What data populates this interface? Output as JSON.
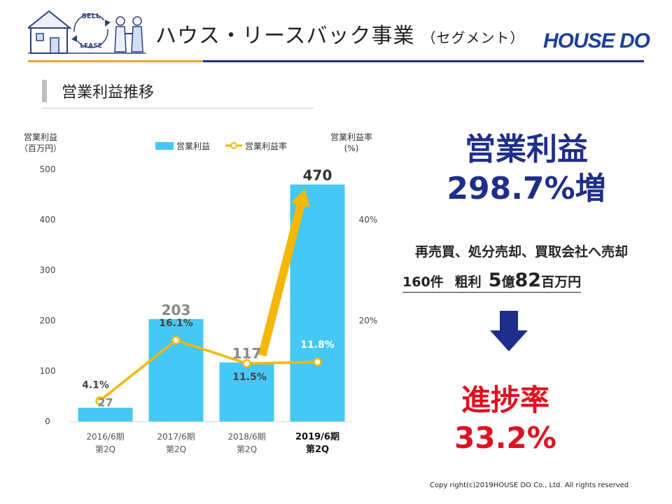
{
  "header": {
    "title": "ハウス・リースバック事業",
    "subtitle": "（セグメント）",
    "logo_text": "HOUSE DO",
    "illustration": {
      "badge_top": "SELL",
      "badge_bottom": "LEASE",
      "icon": "house-handshake-icon"
    }
  },
  "section": {
    "title": "営業利益推移"
  },
  "chart_data": {
    "type": "bar",
    "categories": [
      "2016/6期 第2Q",
      "2017/6期 第2Q",
      "2018/6期 第2Q",
      "2019/6期 第2Q"
    ],
    "category_lines": [
      [
        "2016/6期",
        "第2Q"
      ],
      [
        "2017/6期",
        "第2Q"
      ],
      [
        "2018/6期",
        "第2Q"
      ],
      [
        "2019/6期",
        "第2Q"
      ]
    ],
    "highlighted_category": 3,
    "series": [
      {
        "name": "営業利益",
        "type": "bar",
        "values": [
          27,
          203,
          117,
          470
        ],
        "labels": [
          "27",
          "203",
          "117",
          "470"
        ],
        "axis": "left",
        "color": "#45c8f5"
      },
      {
        "name": "営業利益率",
        "type": "line",
        "values": [
          4.1,
          16.1,
          11.5,
          11.8
        ],
        "labels": [
          "4.1%",
          "16.1%",
          "11.5%",
          "11.8%"
        ],
        "axis": "right",
        "color": "#f5b800"
      }
    ],
    "ylabel": [
      "営業利益",
      "（百万円）"
    ],
    "y2label": [
      "営業利益率",
      "(%)"
    ],
    "ylim": [
      0,
      500
    ],
    "yticks": [
      "0",
      "100",
      "200",
      "300",
      "400",
      "500"
    ],
    "y2lim": [
      0,
      50
    ],
    "y2ticks": [
      "20%",
      "40%"
    ],
    "legend_position": "top",
    "annotation_arrow": {
      "from_category": 2,
      "to_category": 3,
      "color": "#f5b800"
    }
  },
  "summary": {
    "headline_line1": "営業利益",
    "headline_line2": "298.7%増",
    "detail_line1": "再売買、処分売却、買取会社へ売却",
    "detail_count": "160件",
    "detail_label": "粗利",
    "detail_value_1": "5",
    "detail_unit_1": "億",
    "detail_value_2": "82",
    "detail_unit_2": "百万円",
    "progress_label": "進捗率",
    "progress_value": "33.2%",
    "colors": {
      "headline": "#1f2e8a",
      "progress": "#e01020",
      "arrow": "#1f2e8a"
    }
  },
  "footer": {
    "copyright": "Copy right(c)2019HOUSE DO Co., Ltd. All rights reserved"
  }
}
